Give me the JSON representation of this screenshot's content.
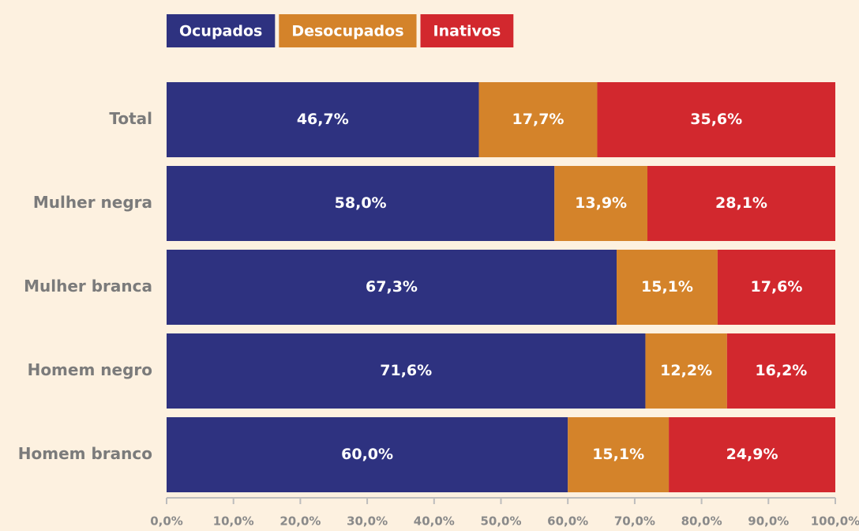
{
  "chart_data": {
    "type": "stacked-bar-horizontal",
    "categories": [
      "Total",
      "Mulher negra",
      "Mulher branca",
      "Homem negro",
      "Homem branco"
    ],
    "series": [
      {
        "name": "Ocupados",
        "color": "#2e3280",
        "values": [
          46.7,
          58.0,
          67.3,
          71.6,
          60.0
        ],
        "value_labels": [
          "46,7%",
          "58,0%",
          "67,3%",
          "71,6%",
          "60,0%"
        ]
      },
      {
        "name": "Desocupados",
        "color": "#d4832a",
        "values": [
          17.7,
          13.9,
          15.1,
          12.2,
          15.1
        ],
        "value_labels": [
          "17,7%",
          "13,9%",
          "15,1%",
          "12,2%",
          "15,1%"
        ]
      },
      {
        "name": "Inativos",
        "color": "#d2282e",
        "values": [
          35.6,
          28.1,
          17.6,
          16.2,
          24.9
        ],
        "value_labels": [
          "35,6%",
          "28,1%",
          "17,6%",
          "16,2%",
          "24,9%"
        ]
      }
    ],
    "xlim": [
      0,
      100
    ],
    "xticks": [
      {
        "value": 0,
        "label": "0,0%"
      },
      {
        "value": 10,
        "label": "10,0%"
      },
      {
        "value": 20,
        "label": "20,0%"
      },
      {
        "value": 30,
        "label": "30,0%"
      },
      {
        "value": 40,
        "label": "40,0%"
      },
      {
        "value": 50,
        "label": "50,0%"
      },
      {
        "value": 60,
        "label": "60,0%"
      },
      {
        "value": 70,
        "label": "70,0%"
      },
      {
        "value": 80,
        "label": "80,0%"
      },
      {
        "value": 90,
        "label": "90,0%"
      },
      {
        "value": 100,
        "label": "100,0%"
      }
    ],
    "legend": "top-left"
  }
}
